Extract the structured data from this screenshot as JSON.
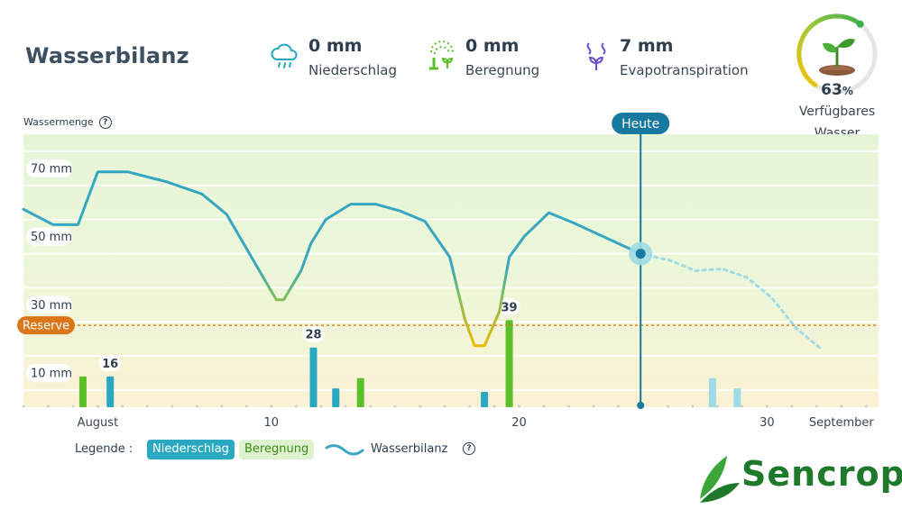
{
  "header": {
    "title": "Wasserbilanz"
  },
  "stats": [
    {
      "value": "0 mm",
      "label": "Niederschlag",
      "icon": "rain-cloud-icon"
    },
    {
      "value": "0 mm",
      "label": "Beregnung",
      "icon": "sprinkler-icon"
    },
    {
      "value": "7 mm",
      "label": "Evapotranspiration",
      "icon": "evaporation-icon"
    }
  ],
  "gauge": {
    "percent": "63",
    "unit": "%",
    "label_line1": "Verfügbares",
    "label_line2": "Wasser",
    "fraction": 0.63
  },
  "legend": {
    "title": "Legende :",
    "rain": "Niederschlag",
    "irrigation": "Beregnung",
    "balance": "Wasserbilanz"
  },
  "colors": {
    "rain": "#2aa7c1",
    "irrigation": "#5bbf2a",
    "balance": "#3aa6c0",
    "today": "#1778a0",
    "reserve": "#d9771a",
    "forecast_rain": "#9fdbe6"
  },
  "chart_data": {
    "type": "line",
    "ylabel": "Wassermenge",
    "yticks": [
      {
        "value": 10,
        "label": "10 mm"
      },
      {
        "value": 30,
        "label": "30 mm"
      },
      {
        "value": 50,
        "label": "50 mm"
      },
      {
        "value": 70,
        "label": "70 mm"
      }
    ],
    "ylim": [
      0,
      80
    ],
    "xlim": [
      0,
      34.5
    ],
    "xticks": [
      {
        "day": 3,
        "label": "August"
      },
      {
        "day": 10,
        "label": "10"
      },
      {
        "day": 20,
        "label": "20"
      },
      {
        "day": 30,
        "label": "30"
      },
      {
        "day": 33,
        "label": "September"
      }
    ],
    "reserve": {
      "value": 24,
      "label": "Reserve"
    },
    "today": {
      "day": 24.9,
      "label": "Heute",
      "value": 45
    },
    "balance_observed": [
      [
        0,
        58
      ],
      [
        1.2,
        53.5
      ],
      [
        2.2,
        53.5
      ],
      [
        3,
        69
      ],
      [
        4.2,
        69
      ],
      [
        5.8,
        66
      ],
      [
        7.2,
        62.5
      ],
      [
        8.2,
        56.5
      ],
      [
        9.2,
        44
      ],
      [
        10.2,
        31.5
      ],
      [
        10.5,
        31.5
      ],
      [
        11.2,
        40
      ],
      [
        11.6,
        48
      ],
      [
        12.2,
        55
      ],
      [
        13.2,
        59.5
      ],
      [
        14.2,
        59.5
      ],
      [
        15.2,
        57.5
      ],
      [
        16.2,
        54.5
      ],
      [
        17.2,
        44
      ],
      [
        17.8,
        26
      ],
      [
        18.2,
        18
      ],
      [
        18.6,
        18
      ],
      [
        19.2,
        28
      ],
      [
        19.6,
        44
      ],
      [
        20.2,
        50
      ],
      [
        21.2,
        57
      ],
      [
        22.2,
        54
      ],
      [
        24.9,
        45
      ]
    ],
    "balance_forecast": [
      [
        24.9,
        45
      ],
      [
        26.1,
        43
      ],
      [
        27.1,
        40
      ],
      [
        28.2,
        40.5
      ],
      [
        29.2,
        38
      ],
      [
        30.2,
        32
      ],
      [
        31.2,
        23
      ],
      [
        32.2,
        17
      ]
    ],
    "rain_bars": [
      {
        "day": 3.5,
        "value": 9,
        "label": "16"
      },
      {
        "day": 11.7,
        "value": 17.5,
        "label": "28"
      },
      {
        "day": 12.6,
        "value": 5.5,
        "label": ""
      },
      {
        "day": 18.6,
        "value": 4.5,
        "label": ""
      }
    ],
    "irrigation_bars": [
      {
        "day": 2.4,
        "value": 9,
        "label": ""
      },
      {
        "day": 13.6,
        "value": 8.5,
        "label": ""
      },
      {
        "day": 19.6,
        "value": 25.5,
        "label": "39"
      }
    ],
    "forecast_rain_bars": [
      {
        "day": 27.8,
        "value": 8.5
      },
      {
        "day": 28.8,
        "value": 5.5
      }
    ]
  }
}
